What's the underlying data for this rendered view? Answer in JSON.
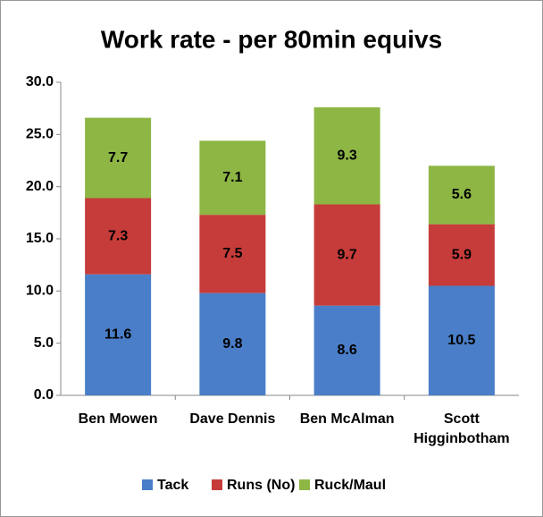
{
  "chart_data": {
    "type": "stacked_bar",
    "title": "Work rate - per 80min equivs",
    "categories": [
      "Ben Mowen",
      "Dave Dennis",
      "Ben McAlman",
      "Scott Higginbotham"
    ],
    "series": [
      {
        "name": "Tack",
        "color": "#4a7ec8",
        "values": [
          11.6,
          9.8,
          8.6,
          10.5
        ]
      },
      {
        "name": "Runs (No)",
        "color": "#c63c3a",
        "values": [
          7.3,
          7.5,
          9.7,
          5.9
        ]
      },
      {
        "name": "Ruck/Maul",
        "color": "#8db645",
        "values": [
          7.7,
          7.1,
          9.3,
          5.6
        ]
      }
    ],
    "ylim": [
      0,
      30
    ],
    "yticks": [
      {
        "value": 0,
        "label": "0.0"
      },
      {
        "value": 5,
        "label": "5.0"
      },
      {
        "value": 10,
        "label": "10.0"
      },
      {
        "value": 15,
        "label": "15.0"
      },
      {
        "value": 20,
        "label": "20.0"
      },
      {
        "value": 25,
        "label": "25.0"
      },
      {
        "value": 30,
        "label": "30.0"
      }
    ],
    "grid": false,
    "legend": "bottom"
  }
}
